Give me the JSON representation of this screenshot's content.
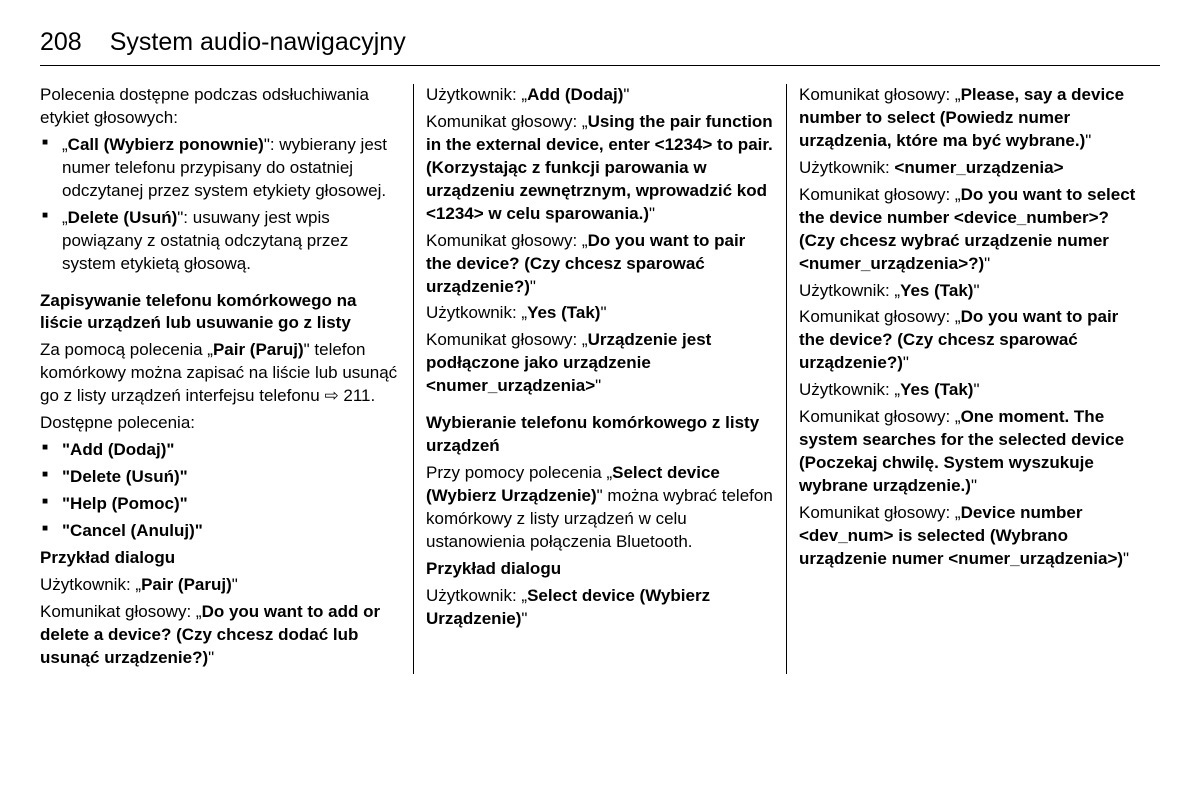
{
  "page_number": "208",
  "page_title": "System audio-nawigacyjny",
  "col1": {
    "intro": "Polecenia dostępne podczas odsłuchiwania etykiet głosowych:",
    "bullet1_cmd": "Call (Wybierz ponownie)",
    "bullet1_desc": ": wybierany jest numer telefonu przypisany do ostatniej odczytanej przez system etykiety głosowej.",
    "bullet2_cmd": "Delete (Usuń)",
    "bullet2_desc": ": usuwany jest wpis powiązany z ostatnią odczytaną przez system etykietą głosową.",
    "h1": "Zapisywanie telefonu komórkowego na liście urządzeń lub usuwanie go z listy",
    "p1a": "Za pomocą polecenia „",
    "p1b": "Pair (Paruj)",
    "p1c": "\" telefon komórkowy można zapisać na liście lub usunąć go z listy urządzeń interfejsu telefonu ",
    "p1_ref": "211.",
    "p2": "Dostępne polecenia:",
    "cmd1": "\"Add (Dodaj)\"",
    "cmd2": "\"Delete (Usuń)\"",
    "cmd3": "\"Help (Pomoc)\"",
    "cmd4": "\"Cancel (Anuluj)\"",
    "h2": "Przykład dialogu",
    "u1a": "Użytkownik: „",
    "u1b": "Pair (Paruj)",
    "u1c": "\"",
    "k1a": "Komunikat głosowy: „",
    "k1b": "Do you want to add or delete a device? (Czy chcesz dodać lub usunąć urządzenie?)",
    "k1c": "\""
  },
  "col2": {
    "u1a": "Użytkownik: „",
    "u1b": "Add (Dodaj)",
    "u1c": "\"",
    "k1a": "Komunikat głosowy: „",
    "k1b": "Using the pair function in the external device, enter <1234> to pair. (Korzystając z funkcji parowania w urządzeniu zewnętrznym, wprowadzić kod <1234> w celu sparowania.)",
    "k1c": "\"",
    "k2a": "Komunikat głosowy: „",
    "k2b": "Do you want to pair the device? (Czy chcesz sparować urządzenie?)",
    "k2c": "\"",
    "u2a": "Użytkownik: „",
    "u2b": "Yes (Tak)",
    "u2c": "\"",
    "k3a": "Komunikat głosowy: „",
    "k3b": "Urządzenie jest podłączone jako urządzenie <numer_urządzenia>",
    "k3c": "\"",
    "h1": "Wybieranie telefonu komórkowego z listy urządzeń",
    "p1a": "Przy pomocy polecenia „",
    "p1b": "Select device (Wybierz Urządzenie)",
    "p1c": "\" można wybrać telefon komórkowy z listy urządzeń w celu ustanowienia połączenia Bluetooth.",
    "h2": "Przykład dialogu",
    "u3a": "Użytkownik: „",
    "u3b": "Select device (Wybierz Urządzenie)",
    "u3c": "\""
  },
  "col3": {
    "k1a": "Komunikat głosowy: „",
    "k1b": "Please, say a device number to select (Powiedz numer urządzenia, które ma być wybrane.)",
    "k1c": "\"",
    "u1a": "Użytkownik: ",
    "u1b": "<numer_urządzenia>",
    "k2a": "Komunikat głosowy: „",
    "k2b": "Do you want to select the device number <device_number>? (Czy chcesz wybrać urządzenie numer <nu­mer_urządzenia>?)",
    "k2c": "\"",
    "u2a": "Użytkownik: „",
    "u2b": "Yes (Tak)",
    "u2c": "\"",
    "k3a": "Komunikat głosowy: „",
    "k3b": "Do you want to pair the device? (Czy chcesz sparować urządzenie?)",
    "k3c": "\"",
    "u3a": "Użytkownik: „",
    "u3b": "Yes (Tak)",
    "u3c": "\"",
    "k4a": "Komunikat głosowy: „",
    "k4b": "One moment. The system searches for the selected device (Poczekaj chwilę. System wyszukuje wybrane urządzenie.)",
    "k4c": "\"",
    "k5a": "Komunikat głosowy: „",
    "k5b": "Device number <dev_num> is selected (Wybrano urządzenie numer <numer_urządze­nia>)",
    "k5c": "\""
  }
}
